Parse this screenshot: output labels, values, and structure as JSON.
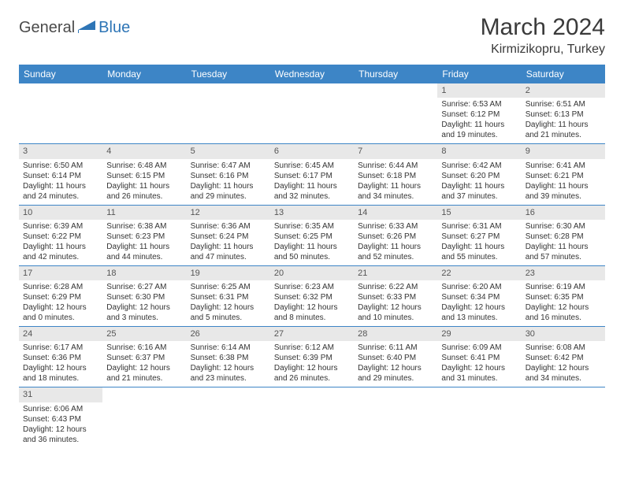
{
  "logo": {
    "text1": "General",
    "text2": "Blue"
  },
  "title": "March 2024",
  "location": "Kirmizikopru, Turkey",
  "headers": [
    "Sunday",
    "Monday",
    "Tuesday",
    "Wednesday",
    "Thursday",
    "Friday",
    "Saturday"
  ],
  "colors": {
    "header_bg": "#3d85c6",
    "header_fg": "#ffffff",
    "daynum_bg": "#e8e8e8",
    "border": "#3d85c6",
    "logo_blue": "#2e75b6"
  },
  "weeks": [
    [
      null,
      null,
      null,
      null,
      null,
      {
        "n": "1",
        "sr": "6:53 AM",
        "ss": "6:12 PM",
        "dl": "11 hours and 19 minutes."
      },
      {
        "n": "2",
        "sr": "6:51 AM",
        "ss": "6:13 PM",
        "dl": "11 hours and 21 minutes."
      }
    ],
    [
      {
        "n": "3",
        "sr": "6:50 AM",
        "ss": "6:14 PM",
        "dl": "11 hours and 24 minutes."
      },
      {
        "n": "4",
        "sr": "6:48 AM",
        "ss": "6:15 PM",
        "dl": "11 hours and 26 minutes."
      },
      {
        "n": "5",
        "sr": "6:47 AM",
        "ss": "6:16 PM",
        "dl": "11 hours and 29 minutes."
      },
      {
        "n": "6",
        "sr": "6:45 AM",
        "ss": "6:17 PM",
        "dl": "11 hours and 32 minutes."
      },
      {
        "n": "7",
        "sr": "6:44 AM",
        "ss": "6:18 PM",
        "dl": "11 hours and 34 minutes."
      },
      {
        "n": "8",
        "sr": "6:42 AM",
        "ss": "6:20 PM",
        "dl": "11 hours and 37 minutes."
      },
      {
        "n": "9",
        "sr": "6:41 AM",
        "ss": "6:21 PM",
        "dl": "11 hours and 39 minutes."
      }
    ],
    [
      {
        "n": "10",
        "sr": "6:39 AM",
        "ss": "6:22 PM",
        "dl": "11 hours and 42 minutes."
      },
      {
        "n": "11",
        "sr": "6:38 AM",
        "ss": "6:23 PM",
        "dl": "11 hours and 44 minutes."
      },
      {
        "n": "12",
        "sr": "6:36 AM",
        "ss": "6:24 PM",
        "dl": "11 hours and 47 minutes."
      },
      {
        "n": "13",
        "sr": "6:35 AM",
        "ss": "6:25 PM",
        "dl": "11 hours and 50 minutes."
      },
      {
        "n": "14",
        "sr": "6:33 AM",
        "ss": "6:26 PM",
        "dl": "11 hours and 52 minutes."
      },
      {
        "n": "15",
        "sr": "6:31 AM",
        "ss": "6:27 PM",
        "dl": "11 hours and 55 minutes."
      },
      {
        "n": "16",
        "sr": "6:30 AM",
        "ss": "6:28 PM",
        "dl": "11 hours and 57 minutes."
      }
    ],
    [
      {
        "n": "17",
        "sr": "6:28 AM",
        "ss": "6:29 PM",
        "dl": "12 hours and 0 minutes."
      },
      {
        "n": "18",
        "sr": "6:27 AM",
        "ss": "6:30 PM",
        "dl": "12 hours and 3 minutes."
      },
      {
        "n": "19",
        "sr": "6:25 AM",
        "ss": "6:31 PM",
        "dl": "12 hours and 5 minutes."
      },
      {
        "n": "20",
        "sr": "6:23 AM",
        "ss": "6:32 PM",
        "dl": "12 hours and 8 minutes."
      },
      {
        "n": "21",
        "sr": "6:22 AM",
        "ss": "6:33 PM",
        "dl": "12 hours and 10 minutes."
      },
      {
        "n": "22",
        "sr": "6:20 AM",
        "ss": "6:34 PM",
        "dl": "12 hours and 13 minutes."
      },
      {
        "n": "23",
        "sr": "6:19 AM",
        "ss": "6:35 PM",
        "dl": "12 hours and 16 minutes."
      }
    ],
    [
      {
        "n": "24",
        "sr": "6:17 AM",
        "ss": "6:36 PM",
        "dl": "12 hours and 18 minutes."
      },
      {
        "n": "25",
        "sr": "6:16 AM",
        "ss": "6:37 PM",
        "dl": "12 hours and 21 minutes."
      },
      {
        "n": "26",
        "sr": "6:14 AM",
        "ss": "6:38 PM",
        "dl": "12 hours and 23 minutes."
      },
      {
        "n": "27",
        "sr": "6:12 AM",
        "ss": "6:39 PM",
        "dl": "12 hours and 26 minutes."
      },
      {
        "n": "28",
        "sr": "6:11 AM",
        "ss": "6:40 PM",
        "dl": "12 hours and 29 minutes."
      },
      {
        "n": "29",
        "sr": "6:09 AM",
        "ss": "6:41 PM",
        "dl": "12 hours and 31 minutes."
      },
      {
        "n": "30",
        "sr": "6:08 AM",
        "ss": "6:42 PM",
        "dl": "12 hours and 34 minutes."
      }
    ],
    [
      {
        "n": "31",
        "sr": "6:06 AM",
        "ss": "6:43 PM",
        "dl": "12 hours and 36 minutes."
      },
      null,
      null,
      null,
      null,
      null,
      null
    ]
  ],
  "labels": {
    "sunrise": "Sunrise:",
    "sunset": "Sunset:",
    "daylight": "Daylight:"
  }
}
